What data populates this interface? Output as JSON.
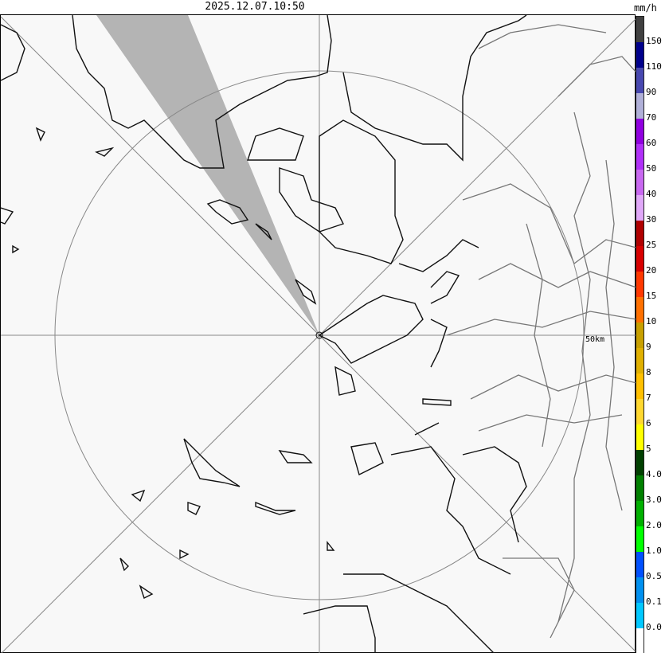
{
  "title": "2025.12.07.10:50",
  "unit": "mm/h",
  "range_label": "50km",
  "legend": [
    {
      "color": "#404040",
      "label": "150"
    },
    {
      "color": "#00008c",
      "label": "110"
    },
    {
      "color": "#4848b0",
      "label": "90"
    },
    {
      "color": "#b0b0d8",
      "label": "70"
    },
    {
      "color": "#9000e0",
      "label": "60"
    },
    {
      "color": "#b030f8",
      "label": "50"
    },
    {
      "color": "#c868f0",
      "label": "40"
    },
    {
      "color": "#e0a8f8",
      "label": "30"
    },
    {
      "color": "#b00000",
      "label": "25"
    },
    {
      "color": "#d80000",
      "label": "20"
    },
    {
      "color": "#ff3800",
      "label": "15"
    },
    {
      "color": "#ff7000",
      "label": "10"
    },
    {
      "color": "#c8a000",
      "label": "9"
    },
    {
      "color": "#e0b000",
      "label": "8"
    },
    {
      "color": "#ffc000",
      "label": "7"
    },
    {
      "color": "#ffd830",
      "label": "6"
    },
    {
      "color": "#ffff00",
      "label": "5"
    },
    {
      "color": "#004000",
      "label": "4.0"
    },
    {
      "color": "#008000",
      "label": "3.0"
    },
    {
      "color": "#00b000",
      "label": "2.0"
    },
    {
      "color": "#00ff00",
      "label": "1.0"
    },
    {
      "color": "#0050ff",
      "label": "0.5"
    },
    {
      "color": "#0090f0",
      "label": "0.1"
    },
    {
      "color": "#00c8ff",
      "label": "0.0"
    },
    {
      "color": "#ffffff",
      "label": ""
    }
  ],
  "colors": {
    "blocked_sector": "#b4b4b4",
    "coast": "#000000",
    "boundary": "#808080",
    "grid": "#808080"
  }
}
